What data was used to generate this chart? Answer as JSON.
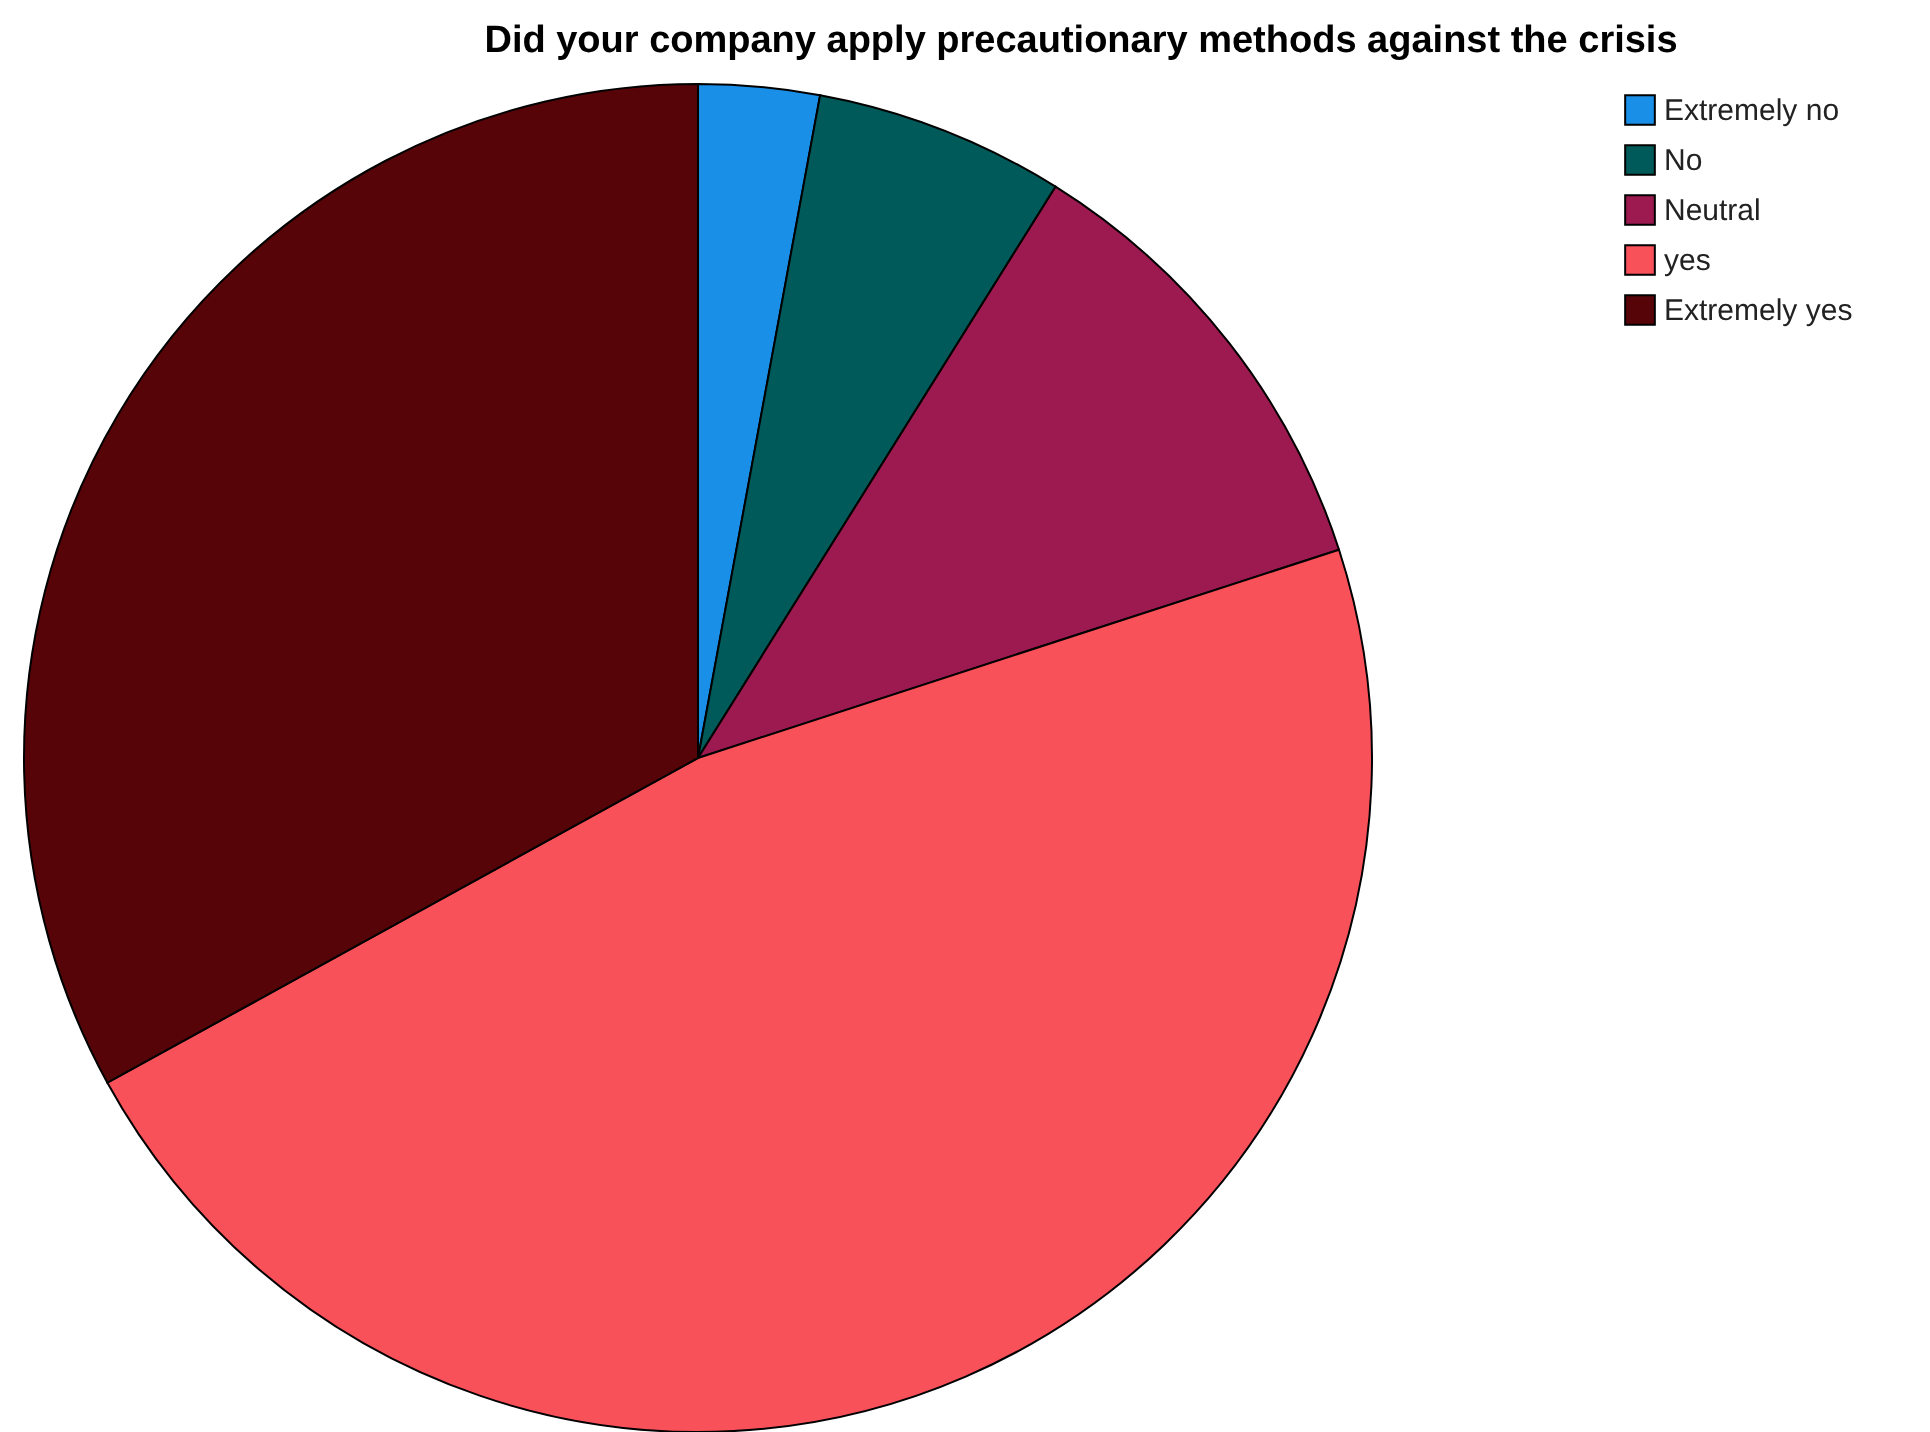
{
  "chart_data": {
    "type": "pie",
    "title": "Did your company apply precautionary methods against the crisis",
    "categories": [
      "Extremely no",
      "No",
      "Neutral",
      "yes",
      "Extremely yes"
    ],
    "values": [
      2.9,
      6.0,
      11.1,
      47.0,
      33.0
    ],
    "colors": [
      "#1a8fe8",
      "#005a5a",
      "#9c1a50",
      "#f9515a",
      "#570408"
    ],
    "legend": "top right"
  }
}
